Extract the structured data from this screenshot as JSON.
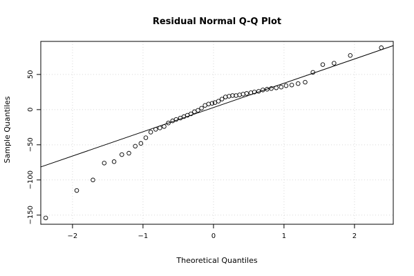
{
  "chart_data": {
    "type": "scatter",
    "title": "Residual Normal Q-Q Plot",
    "xlabel": "Theoretical Quantiles",
    "ylabel": "Sample Quantiles",
    "xlim": [
      -2.45,
      2.55
    ],
    "ylim": [
      -163,
      97
    ],
    "grid": true,
    "x_ticks": [
      -2,
      -1,
      0,
      1,
      2
    ],
    "y_ticks": [
      -150,
      -100,
      -50,
      0,
      50
    ],
    "x_tick_labels": [
      "−2",
      "−1",
      "0",
      "1",
      "2"
    ],
    "y_tick_labels": [
      "−150",
      "−100",
      "−50",
      "0",
      "50"
    ],
    "reference_line": {
      "intercept": 3.0,
      "slope": 34.5
    },
    "points": [
      [
        -2.38,
        -154
      ],
      [
        -1.94,
        -115
      ],
      [
        -1.71,
        -100
      ],
      [
        -1.55,
        -76
      ],
      [
        -1.41,
        -74
      ],
      [
        -1.3,
        -64
      ],
      [
        -1.2,
        -62
      ],
      [
        -1.11,
        -52
      ],
      [
        -1.03,
        -48
      ],
      [
        -0.96,
        -40
      ],
      [
        -0.89,
        -32
      ],
      [
        -0.82,
        -28
      ],
      [
        -0.76,
        -26
      ],
      [
        -0.7,
        -24
      ],
      [
        -0.64,
        -19
      ],
      [
        -0.58,
        -16
      ],
      [
        -0.53,
        -14
      ],
      [
        -0.47,
        -12
      ],
      [
        -0.42,
        -10
      ],
      [
        -0.37,
        -8
      ],
      [
        -0.32,
        -6
      ],
      [
        -0.27,
        -3
      ],
      [
        -0.22,
        -1
      ],
      [
        -0.17,
        2
      ],
      [
        -0.12,
        6
      ],
      [
        -0.07,
        8
      ],
      [
        -0.02,
        9
      ],
      [
        0.02,
        10
      ],
      [
        0.07,
        12
      ],
      [
        0.12,
        15
      ],
      [
        0.17,
        18
      ],
      [
        0.22,
        19
      ],
      [
        0.27,
        20
      ],
      [
        0.32,
        20
      ],
      [
        0.37,
        21
      ],
      [
        0.42,
        22
      ],
      [
        0.47,
        23
      ],
      [
        0.53,
        24
      ],
      [
        0.58,
        25
      ],
      [
        0.64,
        26
      ],
      [
        0.7,
        28
      ],
      [
        0.76,
        29
      ],
      [
        0.82,
        30
      ],
      [
        0.89,
        31
      ],
      [
        0.96,
        32
      ],
      [
        1.03,
        34
      ],
      [
        1.11,
        35
      ],
      [
        1.2,
        37
      ],
      [
        1.3,
        39
      ],
      [
        1.41,
        53
      ],
      [
        1.55,
        64
      ],
      [
        1.71,
        66
      ],
      [
        1.94,
        77
      ],
      [
        2.38,
        88
      ]
    ]
  }
}
